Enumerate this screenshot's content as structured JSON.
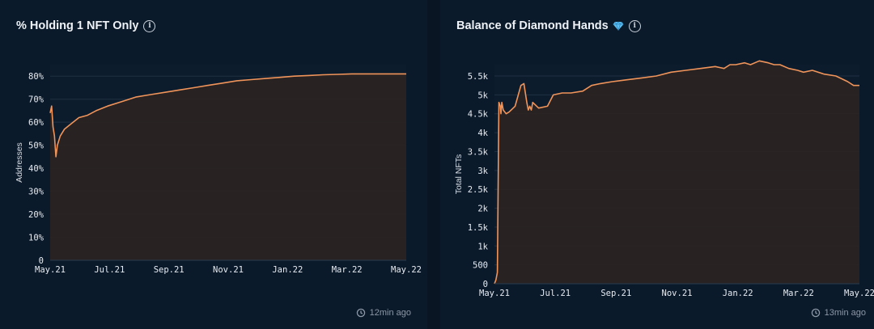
{
  "charts": [
    {
      "title": "% Holding 1 NFT Only",
      "updated": "12min ago",
      "chart_data": {
        "type": "area",
        "title": "% Holding 1 NFT Only",
        "xlabel": "",
        "ylabel": "Addresses",
        "x_ticks": [
          "May.21",
          "Jul.21",
          "Sep.21",
          "Nov.21",
          "Jan.22",
          "Mar.22",
          "May.22"
        ],
        "y_ticks": [
          "0",
          "10%",
          "20%",
          "30%",
          "40%",
          "50%",
          "60%",
          "70%",
          "80%"
        ],
        "ylim": [
          0,
          85
        ],
        "xlim": [
          0,
          12.4
        ],
        "x": [
          0,
          0.05,
          0.1,
          0.15,
          0.2,
          0.25,
          0.35,
          0.5,
          0.7,
          1.0,
          1.3,
          1.6,
          2.0,
          2.5,
          3.0,
          3.5,
          4.0,
          4.5,
          5.0,
          5.5,
          6.0,
          6.5,
          7.0,
          7.5,
          8.0,
          8.5,
          9.0,
          9.5,
          10.0,
          10.5,
          11.0,
          11.5,
          12.0,
          12.4
        ],
        "values": [
          64,
          67,
          58,
          54,
          45,
          50,
          54,
          57,
          59,
          62,
          63,
          65,
          67,
          69,
          71,
          72,
          73,
          74,
          75,
          76,
          77,
          78,
          78.5,
          79,
          79.5,
          80,
          80.3,
          80.6,
          80.8,
          81,
          81,
          81,
          81,
          81
        ],
        "line_color": "#f0945a",
        "fill_color": "#2b2321"
      }
    },
    {
      "title": "Balance of Diamond Hands",
      "updated": "13min ago",
      "chart_data": {
        "type": "area",
        "title": "Balance of Diamond Hands",
        "xlabel": "",
        "ylabel": "Total NFTs",
        "x_ticks": [
          "May.21",
          "Jul.21",
          "Sep.21",
          "Nov.21",
          "Jan.22",
          "Mar.22",
          "May.22"
        ],
        "y_ticks": [
          "0",
          "500",
          "1k",
          "1.5k",
          "2k",
          "2.5k",
          "3k",
          "3.5k",
          "4k",
          "4.5k",
          "5k",
          "5.5k"
        ],
        "ylim": [
          0,
          5800
        ],
        "xlim": [
          0,
          12.4
        ],
        "x": [
          0,
          0.05,
          0.1,
          0.15,
          0.2,
          0.22,
          0.25,
          0.3,
          0.4,
          0.5,
          0.7,
          0.9,
          1.0,
          1.1,
          1.15,
          1.2,
          1.25,
          1.3,
          1.5,
          1.8,
          2.0,
          2.3,
          2.6,
          3.0,
          3.3,
          3.6,
          4.0,
          4.5,
          5.0,
          5.5,
          6.0,
          6.5,
          7.0,
          7.5,
          7.8,
          8.0,
          8.2,
          8.5,
          8.7,
          9.0,
          9.3,
          9.5,
          9.7,
          10.0,
          10.3,
          10.5,
          10.8,
          11.2,
          11.6,
          12.0,
          12.2,
          12.4
        ],
        "values": [
          0,
          100,
          300,
          4800,
          4700,
          4500,
          4800,
          4600,
          4500,
          4550,
          4700,
          5250,
          5300,
          4800,
          4600,
          4700,
          4600,
          4800,
          4650,
          4700,
          5000,
          5050,
          5050,
          5100,
          5250,
          5300,
          5350,
          5400,
          5450,
          5500,
          5600,
          5650,
          5700,
          5750,
          5700,
          5800,
          5800,
          5850,
          5800,
          5900,
          5850,
          5800,
          5800,
          5700,
          5650,
          5600,
          5650,
          5550,
          5500,
          5350,
          5250,
          5250
        ],
        "line_color": "#f0945a",
        "fill_color": "#2b2321"
      }
    }
  ],
  "clock_icon": "clock-refresh-icon",
  "info_icon": "info-icon",
  "gem_icon": "diamond-gem-icon"
}
